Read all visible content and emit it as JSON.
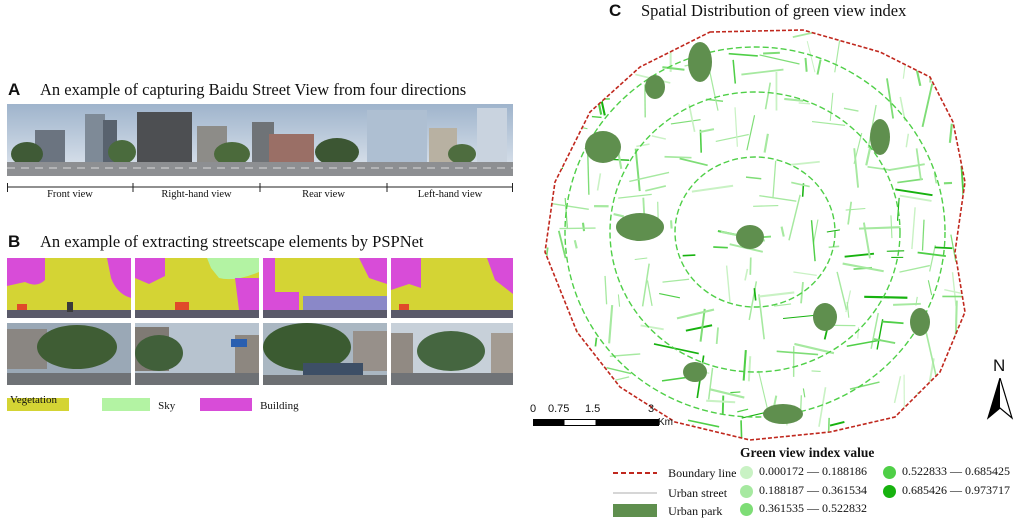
{
  "panel_a": {
    "letter": "A",
    "title": "An example of capturing Baidu Street View from four directions",
    "views": [
      "Front view",
      "Right-hand view",
      "Rear view",
      "Left-hand view"
    ]
  },
  "panel_b": {
    "letter": "B",
    "title": "An example of extracting streetscape elements by PSPNet",
    "legend": [
      {
        "label": "Vegetation",
        "color": "#d4d434"
      },
      {
        "label": "Sky",
        "color": "#b3f3a3"
      },
      {
        "label": "Building",
        "color": "#d84cd8"
      }
    ]
  },
  "panel_c": {
    "letter": "C",
    "title": "Spatial Distribution of green view index",
    "scale_ticks": [
      "0",
      "0.75",
      "1.5",
      "3"
    ],
    "scale_unit": "Km",
    "north": "N",
    "legend_title": "Green view index value",
    "map_legend": [
      {
        "label": "Boundary line",
        "icon": "dashed-red-line"
      },
      {
        "label": "Urban street",
        "icon": "gray-line"
      },
      {
        "label": "Urban park",
        "icon": "dark-green-patch"
      }
    ],
    "gvi_classes": [
      {
        "label": "0.000172 — 0.188186",
        "color": "#c9f2c4"
      },
      {
        "label": "0.188187 — 0.361534",
        "color": "#a6e9a0"
      },
      {
        "label": "0.361535 — 0.522832",
        "color": "#7edd76"
      },
      {
        "label": "0.522833 — 0.685425",
        "color": "#4fcf47"
      },
      {
        "label": "0.685426 — 0.973717",
        "color": "#17b20f"
      }
    ],
    "colors": {
      "boundary": "#c0281e",
      "park": "#5f8f4e",
      "street": "#2fbf2a"
    }
  }
}
